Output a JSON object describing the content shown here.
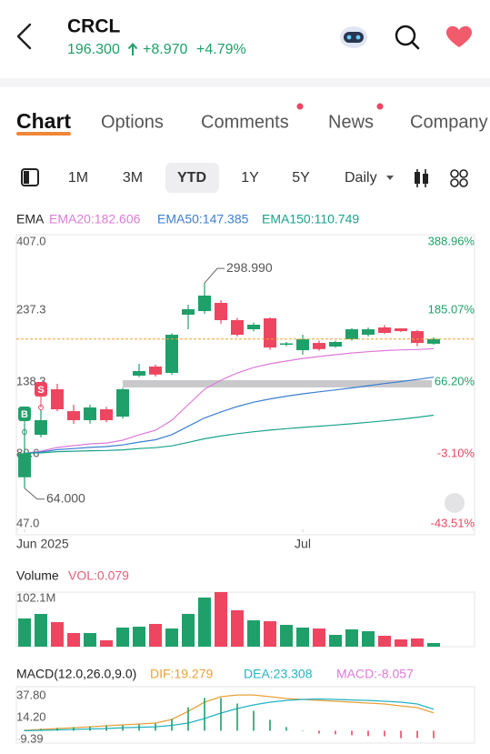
{
  "header": {
    "ticker": "CRCL",
    "price": "196.300",
    "change": "+8.970",
    "change_pct": "+4.79%"
  },
  "tabs": [
    "Chart",
    "Options",
    "Comments",
    "News",
    "Company"
  ],
  "periods": [
    "1M",
    "3M",
    "YTD",
    "1Y",
    "5Y"
  ],
  "interval": "Daily",
  "chart_data": [
    {
      "type": "candlestick",
      "title": "EMA",
      "ylog": true,
      "categories": [
        "Jun 2025",
        null,
        null,
        null,
        null,
        null,
        null,
        null,
        null,
        null,
        null,
        null,
        null,
        null,
        null,
        null,
        null,
        "Jul",
        null,
        null,
        null,
        null,
        null,
        null,
        null,
        null
      ],
      "open": [
        69.5,
        95.6,
        134.6,
        114.2,
        106.7,
        115.8,
        109.6,
        149.1,
        159.6,
        152.2,
        235.6,
        242.1,
        257.5,
        226.2,
        211.2,
        229.3,
        188.0,
        180.5,
        190.6,
        185.5,
        195.9,
        202.7,
        214.1,
        212.6,
        208.3,
        189.5
      ],
      "high": [
        103.75,
        115.8,
        140.2,
        119.8,
        119.8,
        118.0,
        136.0,
        162.9,
        162.0,
        205.0,
        254.0,
        298.99,
        263.0,
        230.0,
        222.0,
        231.0,
        192.0,
        202.7,
        194.0,
        194.0,
        213.0,
        214.0,
        218.0,
        213.0,
        210.0,
        199.0
      ],
      "low": [
        64.0,
        93.9,
        114.2,
        103.8,
        104.0,
        105.0,
        108.0,
        147.5,
        148.0,
        150.0,
        211.2,
        237.3,
        220.0,
        200.0,
        208.0,
        181.0,
        186.0,
        174.5,
        180.0,
        184.0,
        194.0,
        200.0,
        204.0,
        207.0,
        186.0,
        188.0
      ],
      "close": [
        83.23,
        106.7,
        115.8,
        106.7,
        117.4,
        106.7,
        134.6,
        154.3,
        150.3,
        202.7,
        245.5,
        272.0,
        226.2,
        202.7,
        218.6,
        184.2,
        190.0,
        195.9,
        182.0,
        192.0,
        211.2,
        211.2,
        205.5,
        208.3,
        190.6,
        196.3
      ],
      "up_color": "#1fa06a",
      "down_color": "#ee4560",
      "series": [
        {
          "name": "EMA20:182.606",
          "color": "#dd7ad9",
          "values": [
            83.2,
            84.6,
            86.9,
            88.1,
            89.3,
            89.9,
            91.8,
            95.6,
            98.9,
            106.7,
            119.8,
            134.6,
            144.1,
            152.2,
            158.5,
            162.9,
            166.3,
            169.7,
            172.1,
            174.5,
            176.8,
            178.4,
            179.9,
            180.9,
            181.4,
            182.606
          ]
        },
        {
          "name": "EMA50:147.385",
          "color": "#3b7fd1",
          "values": [
            83.2,
            84.0,
            85.5,
            86.2,
            87.0,
            87.5,
            88.6,
            90.5,
            92.1,
            95.7,
            101.9,
            108.5,
            113.5,
            118.2,
            122.1,
            125.2,
            127.8,
            130.1,
            132.0,
            133.9,
            136.0,
            138.2,
            140.5,
            142.6,
            144.9,
            147.385
          ]
        },
        {
          "name": "EMA150:110.749",
          "color": "#1aa38a",
          "values": [
            83.2,
            83.5,
            84.2,
            84.5,
            84.8,
            85.0,
            85.4,
            86.2,
            86.8,
            88.0,
            90.3,
            92.8,
            94.7,
            96.4,
            97.8,
            99.0,
            100.1,
            101.1,
            102.0,
            102.9,
            103.9,
            105.0,
            106.2,
            107.5,
            109.0,
            110.749
          ]
        }
      ],
      "ylim": [
        47.0,
        407.0
      ],
      "yticks": [
        {
          "value": 407.0,
          "label": "407.0"
        },
        {
          "value": 237.3,
          "label": "237.3"
        },
        {
          "value": 138.3,
          "label": "138.3"
        },
        {
          "value": 80.6,
          "label": "80.6"
        },
        {
          "value": 47.0,
          "label": "47.0"
        }
      ],
      "y2lim": [
        -43.51,
        388.96
      ],
      "y2ticks": [
        {
          "value": 388.96,
          "label": "388.96%"
        },
        {
          "value": 185.07,
          "label": "185.07%"
        },
        {
          "value": 66.2,
          "label": "66.20%"
        },
        {
          "value": -3.1,
          "label": "-3.10%"
        },
        {
          "value": -43.51,
          "label": "-43.51%"
        }
      ],
      "annotations": [
        {
          "value": 298.99,
          "label": "298.990"
        },
        {
          "value": 64.0,
          "label": "64.000"
        }
      ],
      "trade_marks": [
        "B",
        "S"
      ]
    },
    {
      "type": "bar",
      "title": "Volume",
      "legend": "VOL:0.079",
      "color": "#ee4560",
      "values": [
        52.8,
        61.3,
        45.9,
        25.5,
        25.5,
        11.9,
        35.7,
        37.4,
        42.5,
        34.0,
        61.3,
        91.9,
        102.1,
        68.1,
        49.3,
        47.6,
        40.8,
        35.7,
        34.0,
        22.1,
        32.3,
        28.9,
        20.4,
        13.6,
        15.3,
        6.8
      ],
      "ylim": [
        0,
        102.1
      ],
      "yticks": [
        {
          "value": 102.1,
          "label": "102.1M"
        }
      ]
    },
    {
      "type": "line",
      "title": "MACD(12.0,26.0,9.0)",
      "series": [
        {
          "name": "DIF:19.279",
          "color": "#e8a13a",
          "style": "line",
          "values": [
            0.4,
            1.4,
            2.4,
            3.3,
            4.3,
            5.3,
            6.3,
            7.3,
            8.3,
            12.2,
            21.0,
            30.9,
            36.8,
            38.7,
            38.7,
            36.8,
            34.8,
            33.8,
            32.8,
            31.9,
            30.9,
            29.9,
            28.9,
            26.9,
            25.0,
            19.279
          ]
        },
        {
          "name": "DEA:23.308",
          "color": "#25b3c6",
          "style": "line",
          "values": [
            0.0,
            0.4,
            0.9,
            1.4,
            1.9,
            2.4,
            3.3,
            3.8,
            4.3,
            5.8,
            8.3,
            13.2,
            19.1,
            24.0,
            27.9,
            30.9,
            32.8,
            33.8,
            34.3,
            33.8,
            33.3,
            32.8,
            31.9,
            30.9,
            28.9,
            23.308
          ]
        },
        {
          "name": "MACD:-8.057",
          "color": "#dd7ad9",
          "style": "bar",
          "values": [
            0.8,
            2.0,
            3.0,
            3.8,
            4.8,
            5.8,
            6.0,
            7.0,
            8.0,
            12.8,
            25.4,
            35.4,
            35.4,
            29.4,
            21.6,
            11.8,
            4.0,
            0.0,
            -3.0,
            -3.8,
            -4.8,
            -5.8,
            -6.0,
            -8.0,
            -7.8,
            -8.057
          ]
        }
      ],
      "up_color": "#1fa06a",
      "down_color": "#ee4560",
      "ylim": [
        -9.39,
        47.6
      ],
      "yticks": [
        {
          "value": 37.8,
          "label": "37.80"
        },
        {
          "value": 14.2,
          "label": "14.20"
        },
        {
          "value": -9.39,
          "label": "-9.39"
        }
      ]
    }
  ]
}
